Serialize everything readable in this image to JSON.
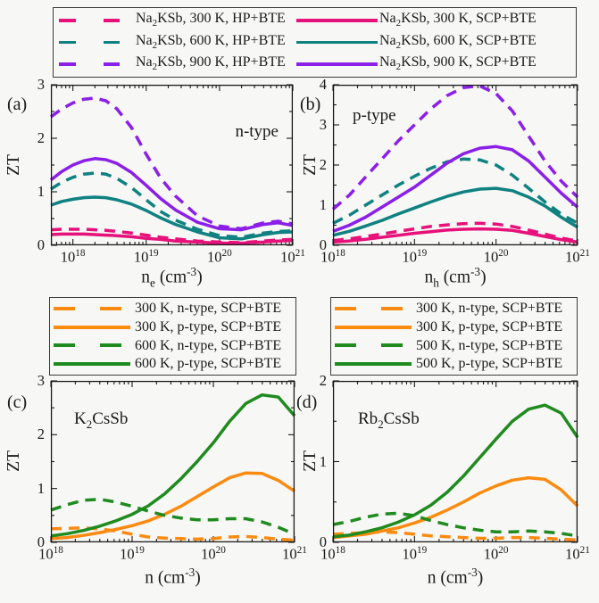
{
  "figure": {
    "background": "#f7f7f5",
    "frame_color": "#1a1a1a"
  },
  "colors": {
    "pink": "#e6117a",
    "teal": "#0f8181",
    "purple": "#8b1fe8",
    "orange": "#fb8b10",
    "green": "#1f8b1f"
  },
  "top_legend": {
    "items": [
      {
        "label": "Na_{2}KSb, 300 K, HP+BTE",
        "color": "#e6117a",
        "dash": true
      },
      {
        "label": "Na_{2}KSb, 300 K, SCP+BTE",
        "color": "#e6117a",
        "dash": false
      },
      {
        "label": "Na_{2}KSb, 600 K, HP+BTE",
        "color": "#0f8181",
        "dash": true
      },
      {
        "label": "Na_{2}KSb, 600 K, SCP+BTE",
        "color": "#0f8181",
        "dash": false
      },
      {
        "label": "Na_{2}KSb, 900 K, HP+BTE",
        "color": "#8b1fe8",
        "dash": true
      },
      {
        "label": "Na_{2}KSb, 900 K, SCP+BTE",
        "color": "#8b1fe8",
        "dash": false
      }
    ]
  },
  "legend_c": {
    "items": [
      {
        "label": "300 K, n-type, SCP+BTE",
        "color": "#fb8b10",
        "dash": true
      },
      {
        "label": "300 K, p-type, SCP+BTE",
        "color": "#fb8b10",
        "dash": false
      },
      {
        "label": "600 K, n-type, SCP+BTE",
        "color": "#1f8b1f",
        "dash": true
      },
      {
        "label": "600 K, p-type, SCP+BTE",
        "color": "#1f8b1f",
        "dash": false
      }
    ]
  },
  "legend_d": {
    "items": [
      {
        "label": "300 K, n-type, SCP+BTE",
        "color": "#fb8b10",
        "dash": true
      },
      {
        "label": "300 K, p-type, SCP+BTE",
        "color": "#fb8b10",
        "dash": false
      },
      {
        "label": "500 K, n-type, SCP+BTE",
        "color": "#1f8b1f",
        "dash": true
      },
      {
        "label": "500 K, p-type, SCP+BTE",
        "color": "#1f8b1f",
        "dash": false
      }
    ]
  },
  "chart_data": [
    {
      "id": "a",
      "type": "line",
      "panel_tag": "(a)",
      "annotation": "n-type",
      "xlabel": "n_{e} (cm^{-3})",
      "ylabel": "ZT",
      "xscale": "log",
      "xlim_exp": [
        17.7,
        21
      ],
      "ylim": [
        0,
        3
      ],
      "xticks_exp": [
        18,
        19,
        20,
        21
      ],
      "xtick_labels": [
        "10^{18}",
        "10^{19}",
        "10^{20}",
        "10^{21}"
      ],
      "yticks": [
        0,
        1,
        2,
        3
      ],
      "y_minor_step": 0.5,
      "series": [
        {
          "name": "Na_{2}KSb, 300 K, HP+BTE",
          "color": "#e6117a",
          "dash": true,
          "x_exp": [
            17.7,
            17.85,
            18,
            18.15,
            18.3,
            18.45,
            18.6,
            18.8,
            19,
            19.2,
            19.4,
            19.7,
            20,
            20.3,
            20.6,
            20.8,
            21
          ],
          "y": [
            0.29,
            0.3,
            0.3,
            0.3,
            0.29,
            0.28,
            0.26,
            0.23,
            0.19,
            0.15,
            0.12,
            0.08,
            0.06,
            0.05,
            0.08,
            0.1,
            0.11
          ]
        },
        {
          "name": "Na_{2}KSb, 300 K, SCP+BTE",
          "color": "#e6117a",
          "dash": false,
          "x_exp": [
            17.7,
            17.85,
            18,
            18.15,
            18.3,
            18.45,
            18.6,
            18.8,
            19,
            19.2,
            19.4,
            19.7,
            20,
            20.3,
            20.6,
            20.8,
            21
          ],
          "y": [
            0.2,
            0.21,
            0.21,
            0.21,
            0.2,
            0.19,
            0.18,
            0.16,
            0.13,
            0.11,
            0.08,
            0.06,
            0.04,
            0.04,
            0.06,
            0.08,
            0.09
          ]
        },
        {
          "name": "Na_{2}KSb, 600 K, HP+BTE",
          "color": "#0f8181",
          "dash": true,
          "x_exp": [
            17.7,
            17.85,
            18,
            18.15,
            18.3,
            18.45,
            18.6,
            18.8,
            19,
            19.2,
            19.4,
            19.7,
            20,
            20.3,
            20.6,
            20.8,
            21
          ],
          "y": [
            1.05,
            1.18,
            1.27,
            1.33,
            1.35,
            1.33,
            1.25,
            1.08,
            0.85,
            0.63,
            0.47,
            0.3,
            0.18,
            0.15,
            0.23,
            0.26,
            0.27
          ]
        },
        {
          "name": "Na_{2}KSb, 600 K, SCP+BTE",
          "color": "#0f8181",
          "dash": false,
          "x_exp": [
            17.7,
            17.85,
            18,
            18.15,
            18.3,
            18.45,
            18.6,
            18.8,
            19,
            19.2,
            19.4,
            19.7,
            20,
            20.3,
            20.6,
            20.8,
            21
          ],
          "y": [
            0.75,
            0.82,
            0.86,
            0.89,
            0.9,
            0.89,
            0.85,
            0.77,
            0.65,
            0.51,
            0.39,
            0.25,
            0.14,
            0.12,
            0.2,
            0.24,
            0.25
          ]
        },
        {
          "name": "Na_{2}KSb, 900 K, HP+BTE",
          "color": "#8b1fe8",
          "dash": true,
          "x_exp": [
            17.7,
            17.85,
            18,
            18.15,
            18.3,
            18.45,
            18.6,
            18.8,
            19,
            19.2,
            19.4,
            19.7,
            20,
            20.3,
            20.6,
            20.8,
            21
          ],
          "y": [
            2.4,
            2.55,
            2.66,
            2.73,
            2.75,
            2.7,
            2.55,
            2.2,
            1.7,
            1.25,
            0.92,
            0.55,
            0.36,
            0.31,
            0.42,
            0.45,
            0.4
          ]
        },
        {
          "name": "Na_{2}KSb, 900 K, SCP+BTE",
          "color": "#8b1fe8",
          "dash": false,
          "x_exp": [
            17.7,
            17.85,
            18,
            18.15,
            18.3,
            18.45,
            18.6,
            18.8,
            19,
            19.2,
            19.4,
            19.7,
            20,
            20.3,
            20.6,
            20.8,
            21
          ],
          "y": [
            1.22,
            1.38,
            1.5,
            1.58,
            1.62,
            1.6,
            1.53,
            1.36,
            1.12,
            0.87,
            0.66,
            0.43,
            0.31,
            0.29,
            0.39,
            0.42,
            0.37
          ]
        }
      ]
    },
    {
      "id": "b",
      "type": "line",
      "panel_tag": "(b)",
      "annotation": "p-type",
      "xlabel": "n_{h} (cm^{-3})",
      "ylabel": "ZT",
      "xscale": "log",
      "xlim_exp": [
        18,
        21
      ],
      "ylim": [
        0,
        4
      ],
      "xticks_exp": [
        18,
        19,
        20,
        21
      ],
      "xtick_labels": [
        "10^{18}",
        "10^{19}",
        "10^{20}",
        "10^{21}"
      ],
      "yticks": [
        0,
        1,
        2,
        3,
        4
      ],
      "y_minor_step": 0.5,
      "series": [
        {
          "name": "Na_{2}KSb, 300 K, HP+BTE",
          "color": "#e6117a",
          "dash": true,
          "x_exp": [
            18,
            18.2,
            18.4,
            18.6,
            18.8,
            19,
            19.2,
            19.4,
            19.6,
            19.8,
            20,
            20.2,
            20.4,
            20.6,
            20.8,
            21
          ],
          "y": [
            0.12,
            0.16,
            0.22,
            0.28,
            0.35,
            0.41,
            0.47,
            0.51,
            0.54,
            0.55,
            0.53,
            0.47,
            0.38,
            0.28,
            0.18,
            0.11
          ]
        },
        {
          "name": "Na_{2}KSb, 300 K, SCP+BTE",
          "color": "#e6117a",
          "dash": false,
          "x_exp": [
            18,
            18.2,
            18.4,
            18.6,
            18.8,
            19,
            19.2,
            19.4,
            19.6,
            19.8,
            20,
            20.2,
            20.4,
            20.6,
            20.8,
            21
          ],
          "y": [
            0.08,
            0.11,
            0.15,
            0.2,
            0.25,
            0.3,
            0.34,
            0.38,
            0.4,
            0.41,
            0.4,
            0.37,
            0.3,
            0.22,
            0.14,
            0.08
          ]
        },
        {
          "name": "Na_{2}KSb, 600 K, HP+BTE",
          "color": "#0f8181",
          "dash": true,
          "x_exp": [
            18,
            18.2,
            18.4,
            18.6,
            18.8,
            19,
            19.2,
            19.4,
            19.6,
            19.8,
            20,
            20.2,
            20.4,
            20.6,
            20.8,
            21
          ],
          "y": [
            0.55,
            0.75,
            1.0,
            1.25,
            1.5,
            1.72,
            1.92,
            2.08,
            2.15,
            2.13,
            2.0,
            1.75,
            1.42,
            1.08,
            0.78,
            0.55
          ]
        },
        {
          "name": "Na_{2}KSb, 600 K, SCP+BTE",
          "color": "#0f8181",
          "dash": false,
          "x_exp": [
            18,
            18.2,
            18.4,
            18.6,
            18.8,
            19,
            19.2,
            19.4,
            19.6,
            19.8,
            20,
            20.2,
            20.4,
            20.6,
            20.8,
            21
          ],
          "y": [
            0.25,
            0.35,
            0.48,
            0.62,
            0.78,
            0.93,
            1.08,
            1.22,
            1.33,
            1.4,
            1.42,
            1.36,
            1.2,
            0.98,
            0.7,
            0.45
          ]
        },
        {
          "name": "Na_{2}KSb, 900 K, HP+BTE",
          "color": "#8b1fe8",
          "dash": true,
          "x_exp": [
            18,
            18.2,
            18.4,
            18.6,
            18.8,
            19,
            19.2,
            19.4,
            19.6,
            19.8,
            20,
            20.2,
            20.4,
            20.6,
            20.8,
            21
          ],
          "y": [
            0.9,
            1.25,
            1.7,
            2.15,
            2.6,
            3.0,
            3.4,
            3.73,
            3.93,
            3.97,
            3.78,
            3.35,
            2.72,
            2.1,
            1.6,
            1.2
          ]
        },
        {
          "name": "Na_{2}KSb, 900 K, SCP+BTE",
          "color": "#8b1fe8",
          "dash": false,
          "x_exp": [
            18,
            18.2,
            18.4,
            18.6,
            18.8,
            19,
            19.2,
            19.4,
            19.6,
            19.8,
            20,
            20.2,
            20.4,
            20.6,
            20.8,
            21
          ],
          "y": [
            0.35,
            0.5,
            0.7,
            0.95,
            1.2,
            1.45,
            1.75,
            2.05,
            2.28,
            2.42,
            2.46,
            2.38,
            2.1,
            1.7,
            1.3,
            0.95
          ]
        }
      ]
    },
    {
      "id": "c",
      "type": "line",
      "panel_tag": "(c)",
      "annotation": "K_{2}CsSb",
      "xlabel": "n (cm^{-3})",
      "ylabel": "ZT",
      "xscale": "log",
      "xlim_exp": [
        18,
        21
      ],
      "ylim": [
        0,
        3
      ],
      "xticks_exp": [
        18,
        19,
        20,
        21
      ],
      "xtick_labels": [
        "10^{18}",
        "10^{19}",
        "10^{20}",
        "10^{21}"
      ],
      "yticks": [
        0,
        1,
        2,
        3
      ],
      "y_minor_step": 0.5,
      "series": [
        {
          "name": "300 K, n-type, SCP+BTE",
          "color": "#fb8b10",
          "dash": true,
          "x_exp": [
            18,
            18.2,
            18.4,
            18.6,
            18.8,
            19,
            19.2,
            19.4,
            19.6,
            19.8,
            20,
            20.2,
            20.4,
            20.6,
            20.8,
            21
          ],
          "y": [
            0.25,
            0.26,
            0.27,
            0.25,
            0.21,
            0.15,
            0.1,
            0.08,
            0.07,
            0.06,
            0.07,
            0.1,
            0.11,
            0.09,
            0.06,
            0.04
          ]
        },
        {
          "name": "300 K, p-type, SCP+BTE",
          "color": "#fb8b10",
          "dash": false,
          "x_exp": [
            18,
            18.2,
            18.4,
            18.6,
            18.8,
            19,
            19.2,
            19.4,
            19.6,
            19.8,
            20,
            20.2,
            20.4,
            20.6,
            20.8,
            21
          ],
          "y": [
            0.07,
            0.09,
            0.13,
            0.18,
            0.24,
            0.31,
            0.4,
            0.52,
            0.67,
            0.85,
            1.03,
            1.2,
            1.29,
            1.28,
            1.15,
            0.95
          ]
        },
        {
          "name": "600 K, n-type, SCP+BTE",
          "color": "#1f8b1f",
          "dash": true,
          "x_exp": [
            18,
            18.2,
            18.4,
            18.6,
            18.8,
            19,
            19.2,
            19.4,
            19.6,
            19.8,
            20,
            20.2,
            20.4,
            20.6,
            20.8,
            21
          ],
          "y": [
            0.6,
            0.7,
            0.78,
            0.8,
            0.75,
            0.67,
            0.58,
            0.5,
            0.45,
            0.42,
            0.42,
            0.44,
            0.44,
            0.38,
            0.28,
            0.15
          ]
        },
        {
          "name": "600 K, p-type, SCP+BTE",
          "color": "#1f8b1f",
          "dash": false,
          "x_exp": [
            18,
            18.2,
            18.4,
            18.6,
            18.8,
            19,
            19.2,
            19.4,
            19.6,
            19.8,
            20,
            20.2,
            20.4,
            20.6,
            20.8,
            21
          ],
          "y": [
            0.12,
            0.16,
            0.22,
            0.3,
            0.4,
            0.52,
            0.68,
            0.9,
            1.18,
            1.5,
            1.85,
            2.25,
            2.58,
            2.74,
            2.7,
            2.35
          ]
        }
      ]
    },
    {
      "id": "d",
      "type": "line",
      "panel_tag": "(d)",
      "annotation": "Rb_{2}CsSb",
      "xlabel": "n (cm^{-3})",
      "ylabel": "ZT",
      "xscale": "log",
      "xlim_exp": [
        18,
        21
      ],
      "ylim": [
        0,
        2
      ],
      "xticks_exp": [
        18,
        19,
        20,
        21
      ],
      "xtick_labels": [
        "10^{18}",
        "10^{19}",
        "10^{20}",
        "10^{21}"
      ],
      "yticks": [
        0,
        1,
        2
      ],
      "y_minor_step": 0.5,
      "series": [
        {
          "name": "300 K, n-type, SCP+BTE",
          "color": "#fb8b10",
          "dash": true,
          "x_exp": [
            18,
            18.2,
            18.4,
            18.6,
            18.8,
            19,
            19.2,
            19.4,
            19.6,
            19.8,
            20,
            20.2,
            20.4,
            20.6,
            20.8,
            21
          ],
          "y": [
            0.1,
            0.11,
            0.12,
            0.13,
            0.12,
            0.1,
            0.08,
            0.07,
            0.06,
            0.05,
            0.05,
            0.06,
            0.06,
            0.05,
            0.04,
            0.03
          ]
        },
        {
          "name": "300 K, p-type, SCP+BTE",
          "color": "#fb8b10",
          "dash": false,
          "x_exp": [
            18,
            18.2,
            18.4,
            18.6,
            18.8,
            19,
            19.2,
            19.4,
            19.6,
            19.8,
            20,
            20.2,
            20.4,
            20.6,
            20.8,
            21
          ],
          "y": [
            0.06,
            0.08,
            0.1,
            0.14,
            0.18,
            0.24,
            0.31,
            0.4,
            0.5,
            0.61,
            0.7,
            0.77,
            0.8,
            0.78,
            0.65,
            0.45
          ]
        },
        {
          "name": "500 K, n-type, SCP+BTE",
          "color": "#1f8b1f",
          "dash": true,
          "x_exp": [
            18,
            18.2,
            18.4,
            18.6,
            18.8,
            19,
            19.2,
            19.4,
            19.6,
            19.8,
            20,
            20.2,
            20.4,
            20.6,
            20.8,
            21
          ],
          "y": [
            0.22,
            0.26,
            0.31,
            0.35,
            0.36,
            0.33,
            0.27,
            0.22,
            0.18,
            0.15,
            0.13,
            0.13,
            0.14,
            0.13,
            0.11,
            0.08
          ]
        },
        {
          "name": "500 K, p-type, SCP+BTE",
          "color": "#1f8b1f",
          "dash": false,
          "x_exp": [
            18,
            18.2,
            18.4,
            18.6,
            18.8,
            19,
            19.2,
            19.4,
            19.6,
            19.8,
            20,
            20.2,
            20.4,
            20.6,
            20.8,
            21
          ],
          "y": [
            0.07,
            0.09,
            0.13,
            0.18,
            0.25,
            0.34,
            0.46,
            0.62,
            0.82,
            1.05,
            1.28,
            1.5,
            1.65,
            1.7,
            1.6,
            1.3
          ]
        }
      ]
    }
  ]
}
